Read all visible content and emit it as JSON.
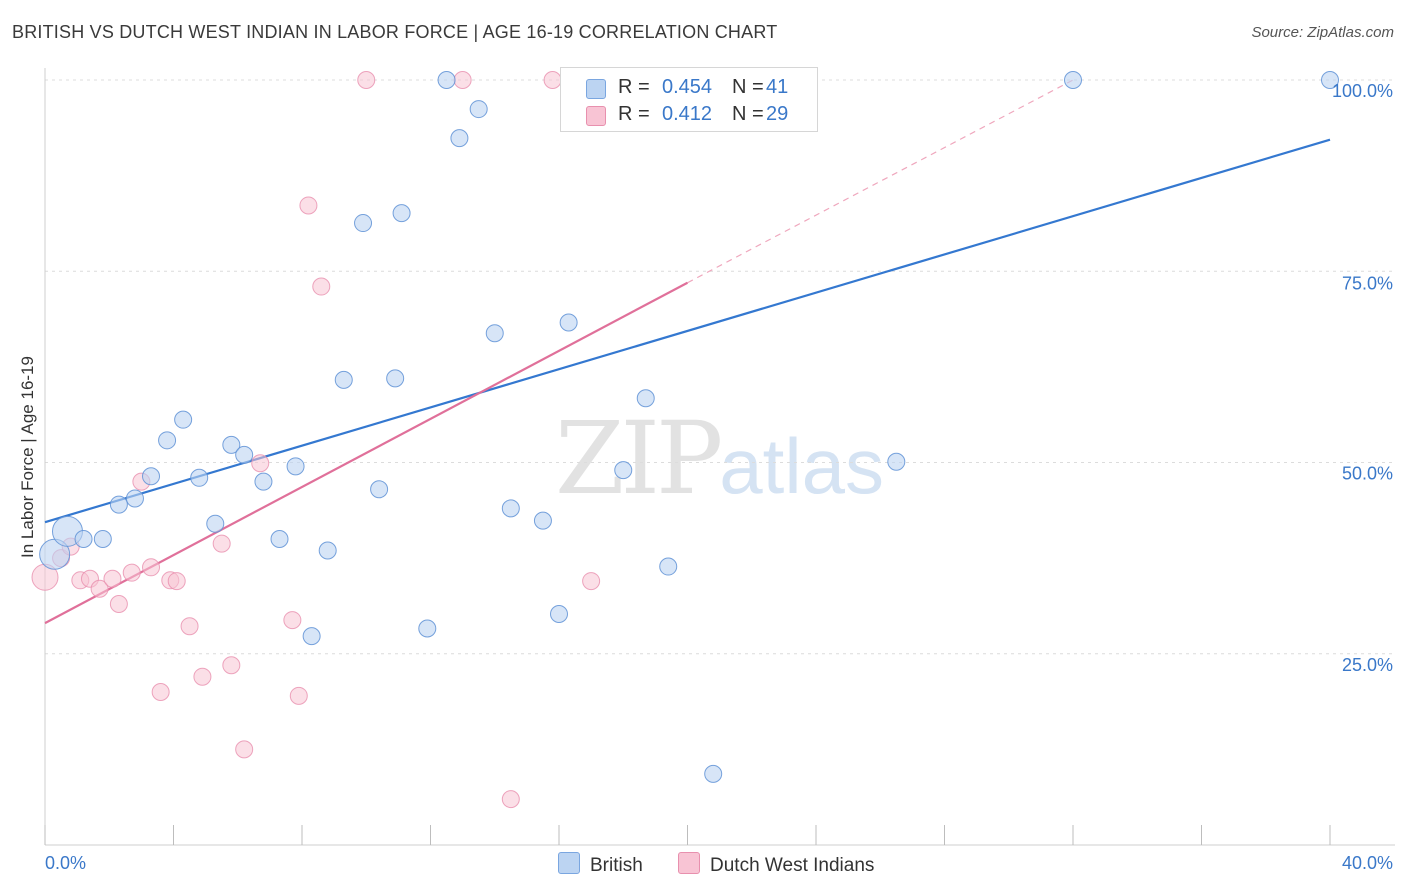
{
  "header": {
    "title": "BRITISH VS DUTCH WEST INDIAN IN LABOR FORCE | AGE 16-19 CORRELATION CHART",
    "source": "Source: ZipAtlas.com"
  },
  "watermark": {
    "zip": "ZIP",
    "atlas": "atlas"
  },
  "legend": {
    "r_label": "R =",
    "n_label": "N =",
    "rows": [
      {
        "r": "0.454",
        "n": "41",
        "color": "#a9c8ef"
      },
      {
        "r": "0.412",
        "n": "29",
        "color": "#f7b6ca"
      }
    ]
  },
  "bottom_legend": {
    "british": "British",
    "dutch": "Dutch West Indians"
  },
  "chart_data": {
    "type": "scatter",
    "title": "BRITISH VS DUTCH WEST INDIAN IN LABOR FORCE | AGE 16-19 CORRELATION CHART",
    "xlabel": "",
    "ylabel": "In Labor Force | Age 16-19",
    "xlim": [
      0,
      40
    ],
    "ylim": [
      0,
      100
    ],
    "x_tick_labels": [
      "0.0%",
      "40.0%"
    ],
    "y_tick_labels": [
      "100.0%",
      "75.0%",
      "50.0%",
      "25.0%"
    ],
    "y_ticks": [
      100,
      75,
      50,
      25
    ],
    "grid": true,
    "legend_position": "top-center",
    "colors": {
      "british": "#3478d0",
      "dutch": "#e0709a",
      "british_fill": "#bcd4f2",
      "dutch_fill": "#f8c4d4"
    },
    "series": [
      {
        "name": "British",
        "r": 0.454,
        "n": 41,
        "trend": {
          "x": [
            0,
            40
          ],
          "y": [
            42.2,
            92.2
          ]
        },
        "points": [
          {
            "x": 0.3,
            "y": 38.0,
            "big": true
          },
          {
            "x": 0.7,
            "y": 41.0,
            "big": true
          },
          {
            "x": 1.2,
            "y": 40.0
          },
          {
            "x": 1.8,
            "y": 40.0
          },
          {
            "x": 2.3,
            "y": 44.5
          },
          {
            "x": 2.8,
            "y": 45.3
          },
          {
            "x": 3.3,
            "y": 48.2
          },
          {
            "x": 3.8,
            "y": 52.9
          },
          {
            "x": 4.3,
            "y": 55.6
          },
          {
            "x": 4.8,
            "y": 48.0
          },
          {
            "x": 5.3,
            "y": 42.0
          },
          {
            "x": 5.8,
            "y": 52.3
          },
          {
            "x": 6.2,
            "y": 51.0
          },
          {
            "x": 6.8,
            "y": 47.5
          },
          {
            "x": 7.3,
            "y": 40.0
          },
          {
            "x": 7.8,
            "y": 49.5
          },
          {
            "x": 8.3,
            "y": 27.3
          },
          {
            "x": 8.8,
            "y": 38.5
          },
          {
            "x": 9.3,
            "y": 60.8
          },
          {
            "x": 9.9,
            "y": 81.3
          },
          {
            "x": 10.4,
            "y": 46.5
          },
          {
            "x": 10.9,
            "y": 61.0
          },
          {
            "x": 11.1,
            "y": 82.6
          },
          {
            "x": 11.9,
            "y": 28.3
          },
          {
            "x": 12.5,
            "y": 100.0
          },
          {
            "x": 12.9,
            "y": 92.4
          },
          {
            "x": 13.5,
            "y": 96.2
          },
          {
            "x": 14.0,
            "y": 66.9
          },
          {
            "x": 14.5,
            "y": 44.0
          },
          {
            "x": 15.5,
            "y": 42.4
          },
          {
            "x": 16.0,
            "y": 30.2
          },
          {
            "x": 16.3,
            "y": 68.3
          },
          {
            "x": 17.0,
            "y": 100.0
          },
          {
            "x": 18.0,
            "y": 49.0
          },
          {
            "x": 18.7,
            "y": 58.4
          },
          {
            "x": 19.4,
            "y": 36.4
          },
          {
            "x": 20.8,
            "y": 9.3
          },
          {
            "x": 22.9,
            "y": 100.0
          },
          {
            "x": 26.5,
            "y": 50.1
          },
          {
            "x": 32.0,
            "y": 100.0
          },
          {
            "x": 40.0,
            "y": 100.0
          }
        ]
      },
      {
        "name": "Dutch West Indians",
        "r": 0.412,
        "n": 29,
        "trend": {
          "x": [
            0,
            20
          ],
          "y": [
            29.0,
            73.5
          ]
        },
        "trend_ext": {
          "x": [
            20,
            32
          ],
          "y": [
            73.5,
            100.0
          ]
        },
        "points": [
          {
            "x": 0.0,
            "y": 35.0,
            "big": true
          },
          {
            "x": 0.5,
            "y": 37.5
          },
          {
            "x": 0.8,
            "y": 39.0
          },
          {
            "x": 1.1,
            "y": 34.6
          },
          {
            "x": 1.4,
            "y": 34.8
          },
          {
            "x": 1.7,
            "y": 33.5
          },
          {
            "x": 2.1,
            "y": 34.8
          },
          {
            "x": 2.3,
            "y": 31.5
          },
          {
            "x": 2.7,
            "y": 35.6
          },
          {
            "x": 3.0,
            "y": 47.5
          },
          {
            "x": 3.3,
            "y": 36.3
          },
          {
            "x": 3.6,
            "y": 20.0
          },
          {
            "x": 3.9,
            "y": 34.6
          },
          {
            "x": 4.1,
            "y": 34.5
          },
          {
            "x": 4.5,
            "y": 28.6
          },
          {
            "x": 4.9,
            "y": 22.0
          },
          {
            "x": 5.5,
            "y": 39.4
          },
          {
            "x": 5.8,
            "y": 23.5
          },
          {
            "x": 6.2,
            "y": 12.5
          },
          {
            "x": 6.7,
            "y": 49.9
          },
          {
            "x": 7.7,
            "y": 29.4
          },
          {
            "x": 7.9,
            "y": 19.5
          },
          {
            "x": 8.2,
            "y": 83.6
          },
          {
            "x": 8.6,
            "y": 73.0
          },
          {
            "x": 10.0,
            "y": 100.0
          },
          {
            "x": 13.0,
            "y": 100.0
          },
          {
            "x": 14.5,
            "y": 6.0
          },
          {
            "x": 15.8,
            "y": 100.0
          },
          {
            "x": 17.0,
            "y": 34.5
          }
        ]
      }
    ]
  }
}
